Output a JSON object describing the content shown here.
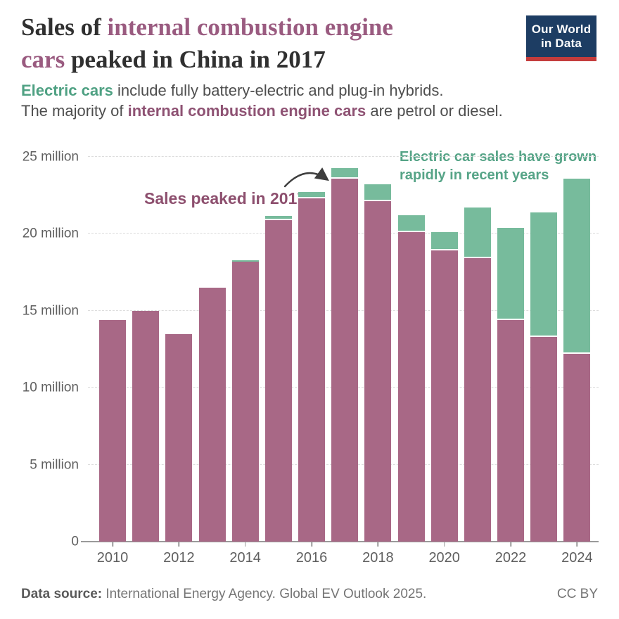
{
  "header": {
    "title_line1_dark": "Sales of ",
    "title_line1_accent": "internal combustion engine",
    "title_line2_accent": "cars",
    "title_line2_dark": " peaked in China in 2017",
    "subtitle1_accent": "Electric cars",
    "subtitle1_rest": " include fully battery-electric and plug-in hybrids.",
    "subtitle2_pre": "The majority of ",
    "subtitle2_accent": "internal combustion engine cars",
    "subtitle2_post": " are petrol or diesel.",
    "logo_line1": "Our World",
    "logo_line2": "in Data",
    "logo_bg_color": "#1d3d63",
    "logo_stripe_color": "#c43c3c"
  },
  "annotations": {
    "peak": "Sales peaked in 2017",
    "ev_growth": "Electric car sales have grown rapidly in recent years",
    "peak_color": "#8d4f6e",
    "ev_color": "#56a487"
  },
  "footer": {
    "source_label": "Data source:",
    "source_text": " International Energy Agency. Global EV Outlook 2025.",
    "license": "CC BY"
  },
  "chart_data": {
    "type": "bar",
    "stacked": true,
    "title": "Sales of internal combustion engine cars peaked in China in 2017",
    "x": [
      2010,
      2011,
      2012,
      2013,
      2014,
      2015,
      2016,
      2017,
      2018,
      2019,
      2020,
      2021,
      2022,
      2023,
      2024
    ],
    "series": [
      {
        "name": "Internal combustion engine cars",
        "color": "#a86886",
        "values": [
          14.4,
          15.0,
          13.5,
          16.5,
          18.2,
          20.9,
          22.3,
          23.6,
          22.1,
          20.1,
          18.9,
          18.4,
          14.4,
          13.3,
          12.2
        ]
      },
      {
        "name": "Electric cars",
        "color": "#77bb9c",
        "values": [
          0.0,
          0.0,
          0.0,
          0.02,
          0.1,
          0.25,
          0.4,
          0.65,
          1.1,
          1.1,
          1.2,
          3.3,
          6.0,
          8.1,
          11.4
        ]
      }
    ],
    "unit": "million cars",
    "ylim": [
      0,
      25
    ],
    "y_ticks": [
      {
        "label": "0",
        "value": 0
      },
      {
        "label": "5 million",
        "value": 5
      },
      {
        "label": "10 million",
        "value": 10
      },
      {
        "label": "15 million",
        "value": 15
      },
      {
        "label": "20 million",
        "value": 20
      },
      {
        "label": "25 million",
        "value": 25
      }
    ],
    "x_ticks": [
      2010,
      2012,
      2014,
      2016,
      2018,
      2020,
      2022,
      2024
    ],
    "grid": "dashed-horizontal",
    "legend_position": "none"
  }
}
